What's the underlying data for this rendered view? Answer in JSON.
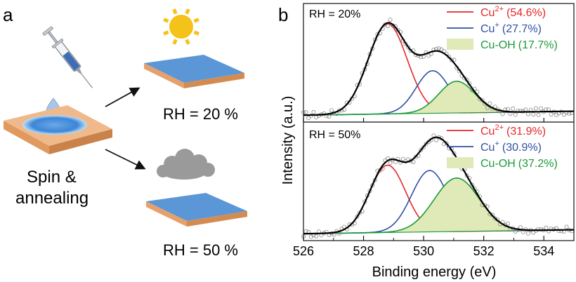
{
  "panel_a": {
    "label": "a",
    "process_label_line1": "Spin &",
    "process_label_line2": "annealing",
    "top_condition": "RH = 20 %",
    "bottom_condition": "RH = 50 %",
    "colors": {
      "sun": "#f5c21a",
      "film": "#5b97d6",
      "substrate": "#e9a872",
      "cloud": "#9a9a9a"
    }
  },
  "panel_b": {
    "label": "b",
    "xlabel": "Binding energy (eV)",
    "ylabel": "Intensity (a.u.)",
    "xticks": [
      "526",
      "528",
      "530",
      "532",
      "534"
    ],
    "top_condition": "RH = 20%",
    "bottom_condition": "RH = 50%"
  },
  "chart_data": [
    {
      "type": "line",
      "title": "RH = 20%",
      "xlabel": "Binding energy (eV)",
      "ylabel": "Intensity (a.u.)",
      "xlim": [
        526,
        535
      ],
      "ylim": [
        0,
        1
      ],
      "grid": false,
      "legend": "top-right",
      "series": [
        {
          "name": "Cu",
          "sup": "2+",
          "pct": "(54.6%)",
          "kind": "peak",
          "center": 528.8,
          "sigma": 0.65,
          "amp": 0.91,
          "color": "#e8262a"
        },
        {
          "name": "Cu",
          "sup": "+",
          "pct": "(27.7%)",
          "kind": "peak",
          "center": 530.3,
          "sigma": 0.55,
          "amp": 0.43,
          "color": "#2f4fa3"
        },
        {
          "name": "Cu-OH",
          "sup": "",
          "pct": "(17.7%)",
          "kind": "peak",
          "center": 531.1,
          "sigma": 0.6,
          "amp": 0.32,
          "color": "#1b9a3a",
          "fill": "#dfeab8"
        },
        {
          "name": "",
          "kind": "envelope",
          "color": "#000000"
        },
        {
          "name": "",
          "kind": "data",
          "color": "#888888"
        }
      ],
      "baseline": [
        0.02,
        0.06
      ]
    },
    {
      "type": "line",
      "title": "RH = 50%",
      "xlabel": "Binding energy (eV)",
      "ylabel": "Intensity (a.u.)",
      "xlim": [
        526,
        535
      ],
      "ylim": [
        0,
        1
      ],
      "grid": false,
      "legend": "top-right",
      "series": [
        {
          "name": "Cu",
          "sup": "2+",
          "pct": "(31.9%)",
          "kind": "peak",
          "center": 528.8,
          "sigma": 0.6,
          "amp": 0.68,
          "color": "#e8262a"
        },
        {
          "name": "Cu",
          "sup": "+",
          "pct": "(30.9%)",
          "kind": "peak",
          "center": 530.2,
          "sigma": 0.6,
          "amp": 0.62,
          "color": "#2f4fa3"
        },
        {
          "name": "Cu-OH",
          "sup": "",
          "pct": "(37.2%)",
          "kind": "peak",
          "center": 531.1,
          "sigma": 0.75,
          "amp": 0.54,
          "color": "#1b9a3a",
          "fill": "#dfeab8"
        },
        {
          "name": "",
          "kind": "envelope",
          "color": "#000000"
        },
        {
          "name": "",
          "kind": "data",
          "color": "#888888"
        }
      ],
      "baseline": [
        0.02,
        0.06
      ]
    }
  ]
}
